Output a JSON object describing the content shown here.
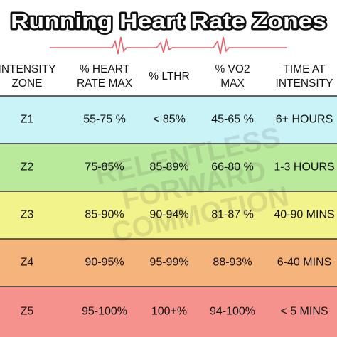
{
  "title": "Running Heart Rate Zones",
  "watermark": [
    "RELENTLESS",
    "FORWARD",
    "COMMOTION"
  ],
  "table": {
    "header": [
      [
        "INTENSITY",
        "ZONE"
      ],
      [
        "% HEART",
        "RATE MAX"
      ],
      [
        "% LTHR"
      ],
      [
        "% VO2",
        "MAX"
      ],
      [
        "TIME AT",
        "INTENSITY"
      ]
    ],
    "rows": [
      [
        "Z1",
        "55-75 %",
        "< 85%",
        "45-65 %",
        "6+ HOURS"
      ],
      [
        "Z2",
        "75-85%",
        "85-89%",
        "66-80 %",
        "1-3 HOURS"
      ],
      [
        "Z3",
        "85-90%",
        "90-94%",
        "81-87 %",
        "40-90 MINS"
      ],
      [
        "Z4",
        "90-95%",
        "95-99%",
        "88-93%",
        "6-40 MINS"
      ],
      [
        "Z5",
        "95-100%",
        "100+%",
        "94-100%",
        "< 5  MINS"
      ]
    ],
    "row_colors": [
      "#c9f3f6",
      "#b9ea9b",
      "#f3f38c",
      "#f5b47c",
      "#f5928d"
    ]
  }
}
